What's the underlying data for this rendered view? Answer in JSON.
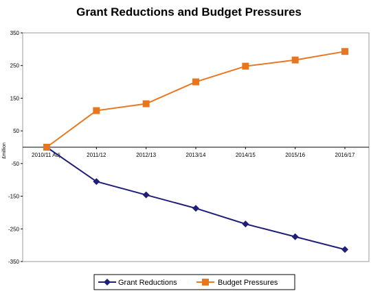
{
  "chart_data": {
    "type": "line",
    "title": "Grant Reductions and Budget Pressures",
    "xlabel": "",
    "ylabel": "£million",
    "categories": [
      "2010/11 Adj.",
      "2011/12",
      "2012/13",
      "2013/14",
      "2014/15",
      "2015/16",
      "2016/17"
    ],
    "ylim": [
      -350,
      350
    ],
    "yticks": [
      350,
      250,
      150,
      50,
      -50,
      -150,
      -250,
      -350
    ],
    "grid": false,
    "legend_position": "bottom",
    "series": [
      {
        "name": "Grant Reductions",
        "color": "#1f1f78",
        "marker": "diamond",
        "values": [
          0,
          -105,
          -146,
          -187,
          -235,
          -274,
          -313
        ]
      },
      {
        "name": "Budget Pressures",
        "color": "#e8761e",
        "marker": "square",
        "values": [
          0,
          112,
          133,
          200,
          248,
          267,
          293
        ]
      }
    ]
  }
}
